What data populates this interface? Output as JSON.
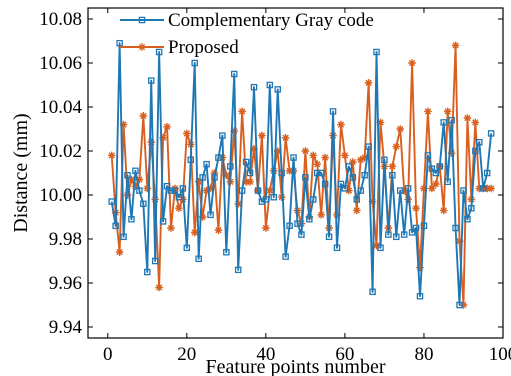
{
  "chart_data": {
    "type": "line",
    "xlabel": "Feature points number",
    "ylabel": "Distance (mm)",
    "xlim": [
      -5,
      100
    ],
    "ylim": [
      9.935,
      10.085
    ],
    "xticks": [
      0,
      20,
      40,
      60,
      80,
      100
    ],
    "yticks": [
      9.94,
      9.96,
      9.98,
      10.0,
      10.02,
      10.04,
      10.06,
      10.08
    ],
    "xtick_labels": [
      "0",
      "20",
      "40",
      "60",
      "80",
      "100"
    ],
    "ytick_labels": [
      "9.94",
      "9.96",
      "9.98",
      "10.00",
      "10.02",
      "10.04",
      "10.06",
      "10.08"
    ],
    "grid": false,
    "legend_position": "top-left",
    "series": [
      {
        "name": "Complementary Gray code",
        "color": "#1f77b4",
        "marker": "square",
        "x": [
          1,
          2,
          3,
          4,
          5,
          6,
          7,
          8,
          9,
          10,
          11,
          12,
          13,
          14,
          15,
          16,
          17,
          18,
          19,
          20,
          21,
          22,
          23,
          24,
          25,
          26,
          27,
          28,
          29,
          30,
          31,
          32,
          33,
          34,
          35,
          36,
          37,
          38,
          39,
          40,
          41,
          42,
          43,
          44,
          45,
          46,
          47,
          48,
          49,
          50,
          51,
          52,
          53,
          54,
          55,
          56,
          57,
          58,
          59,
          60,
          61,
          62,
          63,
          64,
          65,
          66,
          67,
          68,
          69,
          70,
          71,
          72,
          73,
          74,
          75,
          76,
          77,
          78,
          79,
          80,
          81,
          82,
          83,
          84,
          85,
          86,
          87,
          88,
          89,
          90,
          91,
          92,
          93,
          94,
          95,
          96,
          97
        ],
        "y": [
          9.997,
          9.986,
          10.069,
          9.981,
          10.009,
          9.989,
          10.011,
          10.002,
          9.996,
          9.965,
          10.052,
          9.97,
          10.065,
          9.988,
          10.004,
          10.002,
          10.002,
          9.999,
          10.003,
          9.976,
          10.016,
          10.06,
          9.971,
          10.008,
          10.014,
          9.991,
          10.008,
          10.017,
          10.027,
          9.974,
          10.013,
          10.055,
          9.966,
          10.002,
          10.015,
          10.01,
          10.049,
          10.002,
          9.997,
          9.998,
          10.05,
          9.999,
          10.048,
          10.01,
          9.972,
          9.986,
          10.017,
          9.987,
          9.982,
          10.008,
          9.989,
          9.998,
          10.01,
          10.01,
          10.005,
          9.981,
          10.038,
          9.976,
          10.005,
          10.003,
          10.013,
          10.008,
          9.998,
          10.002,
          10.009,
          10.022,
          9.956,
          10.065,
          9.976,
          10.016,
          9.982,
          10.009,
          9.981,
          10.002,
          9.982,
          10.003,
          9.983,
          9.985,
          9.954,
          9.986,
          10.018,
          10.012,
          10.01,
          10.013,
          10.033,
          10.006,
          10.034,
          9.985,
          9.95,
          10.002,
          9.989,
          9.994,
          10.02,
          10.024,
          10.003,
          10.01,
          10.028
        ]
      },
      {
        "name": "Proposed",
        "color": "#d95f1e",
        "marker": "asterisk",
        "x": [
          1,
          2,
          3,
          4,
          5,
          6,
          7,
          8,
          9,
          10,
          11,
          12,
          13,
          14,
          15,
          16,
          17,
          18,
          19,
          20,
          21,
          22,
          23,
          24,
          25,
          26,
          27,
          28,
          29,
          30,
          31,
          32,
          33,
          34,
          35,
          36,
          37,
          38,
          39,
          40,
          41,
          42,
          43,
          44,
          45,
          46,
          47,
          48,
          49,
          50,
          51,
          52,
          53,
          54,
          55,
          56,
          57,
          58,
          59,
          60,
          61,
          62,
          63,
          64,
          65,
          66,
          67,
          68,
          69,
          70,
          71,
          72,
          73,
          74,
          75,
          76,
          77,
          78,
          79,
          80,
          81,
          82,
          83,
          84,
          85,
          86,
          87,
          88,
          89,
          90,
          91,
          92,
          93,
          94,
          95,
          96,
          97
        ],
        "y": [
          10.018,
          9.992,
          9.974,
          10.032,
          10.0,
          10.007,
          10.004,
          10.007,
          10.036,
          10.003,
          10.024,
          9.998,
          9.958,
          10.026,
          10.031,
          9.985,
          10.003,
          9.994,
          9.998,
          10.028,
          10.023,
          9.983,
          10.006,
          9.99,
          10.002,
          10.003,
          10.01,
          9.984,
          10.017,
          10.009,
          10.006,
          10.029,
          9.996,
          10.038,
          10.006,
          10.006,
          10.021,
          10.002,
          10.027,
          9.985,
          10.002,
          10.011,
          10.02,
          9.999,
          10.026,
          10.011,
          10.011,
          9.993,
          9.987,
          10.02,
          9.99,
          10.018,
          10.014,
          9.991,
          10.017,
          9.985,
          10.027,
          9.991,
          10.032,
          10.018,
          10.002,
          10.015,
          9.993,
          10.016,
          10.017,
          10.051,
          9.997,
          9.977,
          10.033,
          10.013,
          9.985,
          10.013,
          10.022,
          10.03,
          10.002,
          9.998,
          10.06,
          9.994,
          9.967,
          10.003,
          10.038,
          10.003,
          10.005,
          10.013,
          9.993,
          10.038,
          10.019,
          10.068,
          9.979,
          9.95,
          10.035,
          9.998,
          10.033,
          10.003,
          10.003,
          10.003,
          10.003
        ]
      }
    ]
  }
}
